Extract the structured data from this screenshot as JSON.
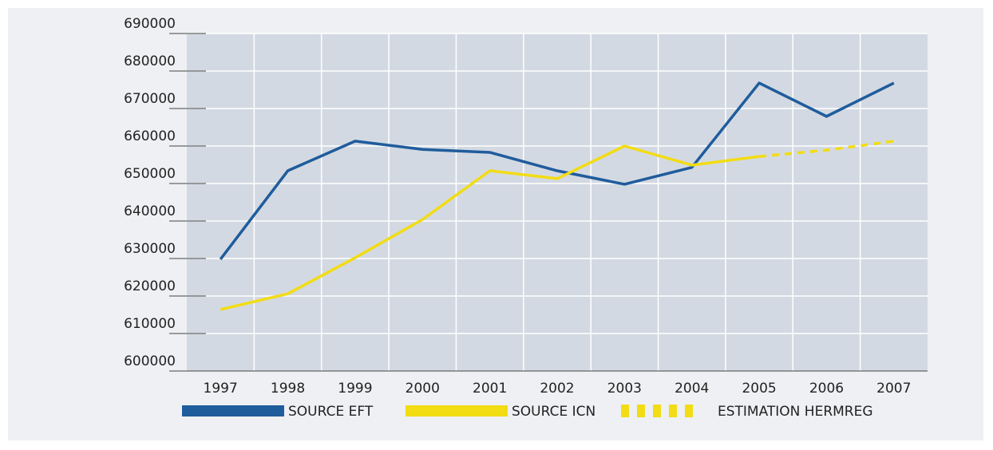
{
  "chart_data": {
    "type": "line",
    "categories": [
      "1997",
      "1998",
      "1999",
      "2000",
      "2001",
      "2002",
      "2003",
      "2004",
      "2005",
      "2006",
      "2007"
    ],
    "series": [
      {
        "name": "SOURCE EFT",
        "color": "#1f5c9c",
        "style": "solid",
        "values": [
          629800,
          653400,
          661300,
          659100,
          658300,
          653400,
          649800,
          654300,
          676800,
          667900,
          676800
        ]
      },
      {
        "name": "SOURCE ICN",
        "color": "#f2dc14",
        "style": "solid",
        "values": [
          616400,
          620600,
          630200,
          640400,
          653400,
          651300,
          660000,
          654900,
          657200,
          null,
          null
        ]
      },
      {
        "name": "ESTIMATION HERMREG",
        "color": "#f2dc14",
        "style": "dashed",
        "values": [
          null,
          null,
          null,
          null,
          null,
          null,
          null,
          null,
          657200,
          658900,
          661300
        ]
      }
    ],
    "ylim": [
      600000,
      690000
    ],
    "yticks": [
      600000,
      610000,
      620000,
      630000,
      640000,
      650000,
      660000,
      670000,
      680000,
      690000
    ],
    "grid": true,
    "legend": "bottom"
  }
}
